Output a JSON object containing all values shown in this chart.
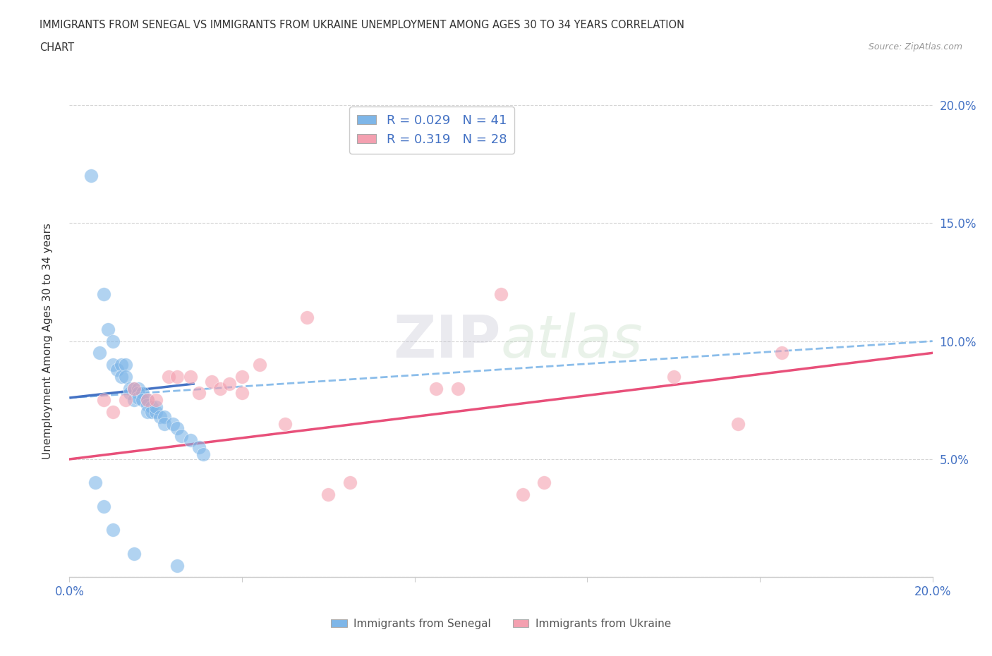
{
  "title_line1": "IMMIGRANTS FROM SENEGAL VS IMMIGRANTS FROM UKRAINE UNEMPLOYMENT AMONG AGES 30 TO 34 YEARS CORRELATION",
  "title_line2": "CHART",
  "source": "Source: ZipAtlas.com",
  "ylabel": "Unemployment Among Ages 30 to 34 years",
  "xlim": [
    0.0,
    0.2
  ],
  "ylim": [
    0.0,
    0.2
  ],
  "xticks": [
    0.0,
    0.04,
    0.08,
    0.12,
    0.16,
    0.2
  ],
  "yticks": [
    0.0,
    0.05,
    0.1,
    0.15,
    0.2
  ],
  "xticklabels_show": [
    "0.0%",
    "20.0%"
  ],
  "yticklabels_right": [
    "5.0%",
    "10.0%",
    "15.0%",
    "20.0%"
  ],
  "senegal_color": "#7EB6E8",
  "senegal_line_color": "#4472C4",
  "ukraine_color": "#F4A0B0",
  "ukraine_line_color": "#E8507A",
  "senegal_R": 0.029,
  "senegal_N": 41,
  "ukraine_R": 0.319,
  "ukraine_N": 28,
  "watermark": "ZIPatlas",
  "legend_label_senegal": "Immigrants from Senegal",
  "legend_label_ukraine": "Immigrants from Ukraine",
  "senegal_x": [
    0.005,
    0.007,
    0.008,
    0.009,
    0.01,
    0.01,
    0.011,
    0.012,
    0.012,
    0.013,
    0.013,
    0.014,
    0.014,
    0.015,
    0.015,
    0.016,
    0.016,
    0.016,
    0.017,
    0.017,
    0.018,
    0.018,
    0.018,
    0.019,
    0.019,
    0.02,
    0.02,
    0.021,
    0.022,
    0.022,
    0.024,
    0.025,
    0.026,
    0.028,
    0.03,
    0.031,
    0.006,
    0.008,
    0.01,
    0.015,
    0.025
  ],
  "senegal_y": [
    0.17,
    0.095,
    0.12,
    0.105,
    0.1,
    0.09,
    0.088,
    0.09,
    0.085,
    0.09,
    0.085,
    0.08,
    0.078,
    0.08,
    0.075,
    0.08,
    0.078,
    0.076,
    0.078,
    0.075,
    0.075,
    0.073,
    0.07,
    0.072,
    0.07,
    0.07,
    0.072,
    0.068,
    0.068,
    0.065,
    0.065,
    0.063,
    0.06,
    0.058,
    0.055,
    0.052,
    0.04,
    0.03,
    0.02,
    0.01,
    0.005
  ],
  "ukraine_x": [
    0.008,
    0.01,
    0.013,
    0.015,
    0.018,
    0.02,
    0.023,
    0.025,
    0.028,
    0.03,
    0.033,
    0.035,
    0.037,
    0.04,
    0.04,
    0.044,
    0.05,
    0.055,
    0.06,
    0.065,
    0.085,
    0.09,
    0.1,
    0.105,
    0.11,
    0.14,
    0.155,
    0.165
  ],
  "ukraine_y": [
    0.075,
    0.07,
    0.075,
    0.08,
    0.075,
    0.075,
    0.085,
    0.085,
    0.085,
    0.078,
    0.083,
    0.08,
    0.082,
    0.078,
    0.085,
    0.09,
    0.065,
    0.11,
    0.035,
    0.04,
    0.08,
    0.08,
    0.12,
    0.035,
    0.04,
    0.085,
    0.065,
    0.095
  ],
  "senegal_trend_x": [
    0.0,
    0.029
  ],
  "senegal_trend_y": [
    0.076,
    0.082
  ],
  "ukraine_trend_x": [
    0.0,
    0.2
  ],
  "ukraine_trend_y": [
    0.05,
    0.095
  ]
}
